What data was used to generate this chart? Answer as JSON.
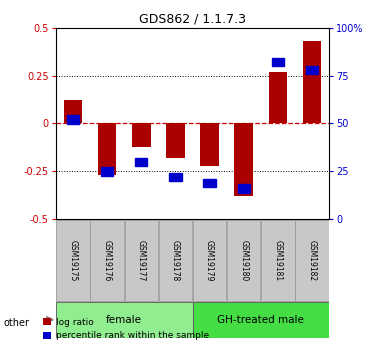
{
  "title": "GDS862 / 1.1.7.3",
  "samples": [
    "GSM19175",
    "GSM19176",
    "GSM19177",
    "GSM19178",
    "GSM19179",
    "GSM19180",
    "GSM19181",
    "GSM19182"
  ],
  "log_ratios": [
    0.12,
    -0.27,
    -0.12,
    -0.18,
    -0.22,
    -0.38,
    0.27,
    0.43
  ],
  "percentile_ranks": [
    52,
    25,
    30,
    22,
    19,
    16,
    82,
    78
  ],
  "groups": [
    {
      "label": "female",
      "start": 0,
      "end": 4,
      "color": "#90EE90"
    },
    {
      "label": "GH-treated male",
      "start": 4,
      "end": 8,
      "color": "#44DD44"
    }
  ],
  "ylim": [
    -0.5,
    0.5
  ],
  "yticks_left": [
    -0.5,
    -0.25,
    0.0,
    0.25,
    0.5
  ],
  "yticks_right_pct": [
    0,
    25,
    50,
    75,
    100
  ],
  "bar_color": "#AA0000",
  "dot_color": "#0000CC",
  "hline_color": "#CC0000",
  "bg_color": "#FFFFFF",
  "plot_bg": "#FFFFFF",
  "legend_log_ratio": "log ratio",
  "legend_percentile": "percentile rank within the sample",
  "other_label": "other",
  "dotted_line_color": "#000000",
  "axis_label_color_left": "#CC0000",
  "axis_label_color_right": "#0000CC",
  "sample_box_color": "#C8C8C8",
  "sample_box_edge": "#999999"
}
